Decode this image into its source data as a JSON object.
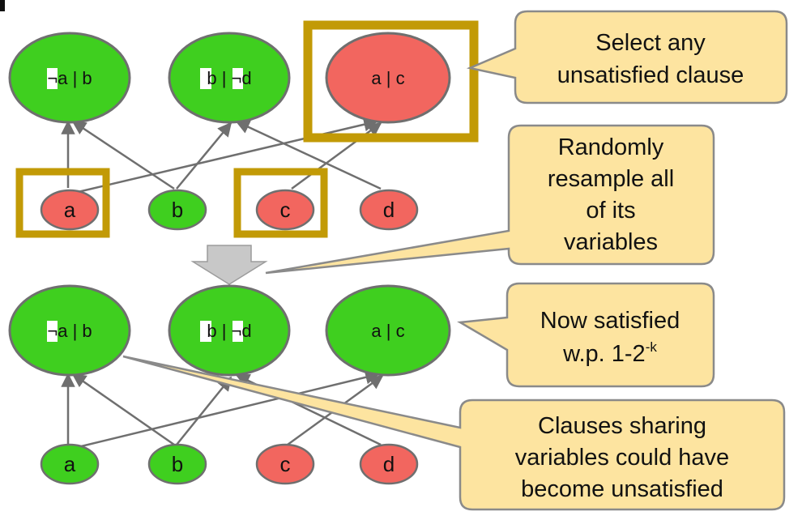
{
  "colors": {
    "satisfied": "#3fcf1f",
    "unsatisfied": "#f2665f",
    "highlight_box": "#c29a06",
    "callout_fill": "#fde4a0",
    "edge": "#6f6f6f",
    "arrow_fill": "#c8c8c8"
  },
  "top_graph": {
    "clauses": [
      {
        "neg": "¬",
        "first": "a",
        "sep": " | ",
        "neg2": "",
        "second": "b",
        "state": "satisfied"
      },
      {
        "neg": "",
        "first": "b",
        "sep": " | ",
        "neg2": "¬",
        "second": "d",
        "state": "satisfied"
      },
      {
        "label": "a | c",
        "state": "unsatisfied"
      }
    ],
    "variables": [
      {
        "label": "a",
        "state": "unsatisfied"
      },
      {
        "label": "b",
        "state": "satisfied"
      },
      {
        "label": "c",
        "state": "unsatisfied"
      },
      {
        "label": "d",
        "state": "unsatisfied"
      }
    ]
  },
  "bottom_graph": {
    "clauses": [
      {
        "neg": "¬",
        "first": "a",
        "sep": " | ",
        "neg2": "",
        "second": "b",
        "state": "satisfied"
      },
      {
        "neg": "",
        "first": "b",
        "sep": " | ",
        "neg2": "¬",
        "second": "d",
        "state": "satisfied"
      },
      {
        "label": "a | c",
        "state": "satisfied"
      }
    ],
    "variables": [
      {
        "label": "a",
        "state": "satisfied"
      },
      {
        "label": "b",
        "state": "satisfied"
      },
      {
        "label": "c",
        "state": "unsatisfied"
      },
      {
        "label": "d",
        "state": "unsatisfied"
      }
    ]
  },
  "callouts": {
    "select": {
      "line1": "Select any",
      "line2": "unsatisfied clause"
    },
    "resample": {
      "line1": "Randomly",
      "line2": "resample all",
      "line3": "of its",
      "line4": "variables"
    },
    "satisfied": {
      "line1": "Now satisfied",
      "line2_main": "w.p. 1-2",
      "line2_sup": "-k"
    },
    "sharing": {
      "line1": "Clauses sharing",
      "line2": "variables could have",
      "line3": "become unsatisfied"
    }
  }
}
